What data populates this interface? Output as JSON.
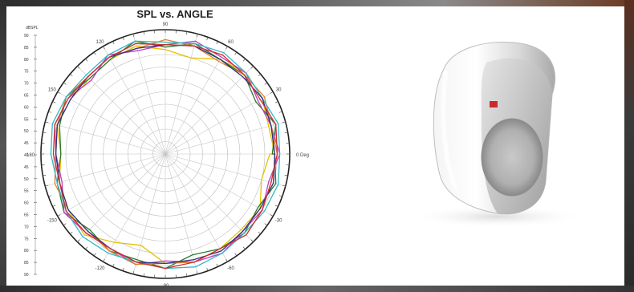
{
  "chart_data": {
    "type": "polar-line",
    "title": "SPL vs. ANGLE",
    "r_unit_label": "dBSPL",
    "r_ticks_left": [
      "90",
      "85",
      "80",
      "75",
      "70",
      "65",
      "60",
      "55",
      "50",
      "45",
      "40",
      "45",
      "50",
      "55",
      "60",
      "65",
      "70",
      "75",
      "80",
      "85",
      "90"
    ],
    "angle_labels": [
      {
        "deg": 90,
        "text": "90"
      },
      {
        "deg": 60,
        "text": "60"
      },
      {
        "deg": 30,
        "text": "30"
      },
      {
        "deg": 0,
        "text": "0 Deg"
      },
      {
        "deg": -30,
        "text": "-30"
      },
      {
        "deg": -60,
        "text": "-60"
      },
      {
        "deg": -90,
        "text": "-90"
      },
      {
        "deg": -120,
        "text": "-120"
      },
      {
        "deg": -150,
        "text": "-150"
      },
      {
        "deg": 180,
        "text": "180"
      },
      {
        "deg": 150,
        "text": "150"
      },
      {
        "deg": 120,
        "text": "120"
      }
    ],
    "r_min": 40,
    "r_max": 90,
    "angle_step_deg": 15,
    "series": [
      {
        "color": "#e6c200",
        "values": [
          84,
          83,
          85,
          86,
          84,
          80,
          82,
          85,
          84,
          83,
          84,
          85,
          82,
          84,
          85,
          86,
          81,
          78,
          84,
          85,
          84,
          83,
          84,
          80,
          82
        ]
      },
      {
        "color": "#2a7a2a",
        "values": [
          83,
          86,
          82,
          85,
          84,
          86,
          83,
          87,
          84,
          83,
          86,
          84,
          82,
          85,
          87,
          83,
          85,
          84,
          86,
          82,
          84,
          85,
          83,
          86,
          84
        ]
      },
      {
        "color": "#c040c0",
        "values": [
          86,
          84,
          83,
          86,
          85,
          87,
          84,
          83,
          86,
          82,
          85,
          86,
          84,
          83,
          87,
          85,
          84,
          86,
          83,
          85,
          86,
          84,
          85,
          83,
          86
        ]
      },
      {
        "color": "#e08030",
        "values": [
          85,
          84,
          86,
          85,
          83,
          85,
          86,
          84,
          85,
          84,
          86,
          85,
          84,
          86,
          85,
          84,
          85,
          86,
          84,
          85,
          84,
          86,
          85,
          84,
          85
        ]
      },
      {
        "color": "#30b8c8",
        "values": [
          86,
          87,
          85,
          86,
          87,
          86,
          85,
          87,
          86,
          85,
          86,
          87,
          86,
          85,
          86,
          87,
          86,
          85,
          86,
          87,
          86,
          85,
          86,
          87,
          86
        ]
      },
      {
        "color": "#303080",
        "values": [
          84,
          84,
          85,
          84,
          84,
          85,
          84,
          84,
          85,
          84,
          84,
          85,
          84,
          84,
          85,
          84,
          84,
          85,
          84,
          84,
          85,
          84,
          84,
          85,
          84
        ]
      },
      {
        "color": "#d03030",
        "values": [
          85,
          86,
          84,
          85,
          86,
          85,
          84,
          86,
          85,
          84,
          85,
          86,
          85,
          84,
          86,
          85,
          84,
          85,
          86,
          85,
          84,
          86,
          85,
          84,
          85
        ]
      }
    ],
    "angle_degrees_per_point": 15,
    "grid": true
  },
  "photo": {
    "subject": "white bookshelf speaker with grille",
    "badge_color": "#cc2a2a"
  }
}
